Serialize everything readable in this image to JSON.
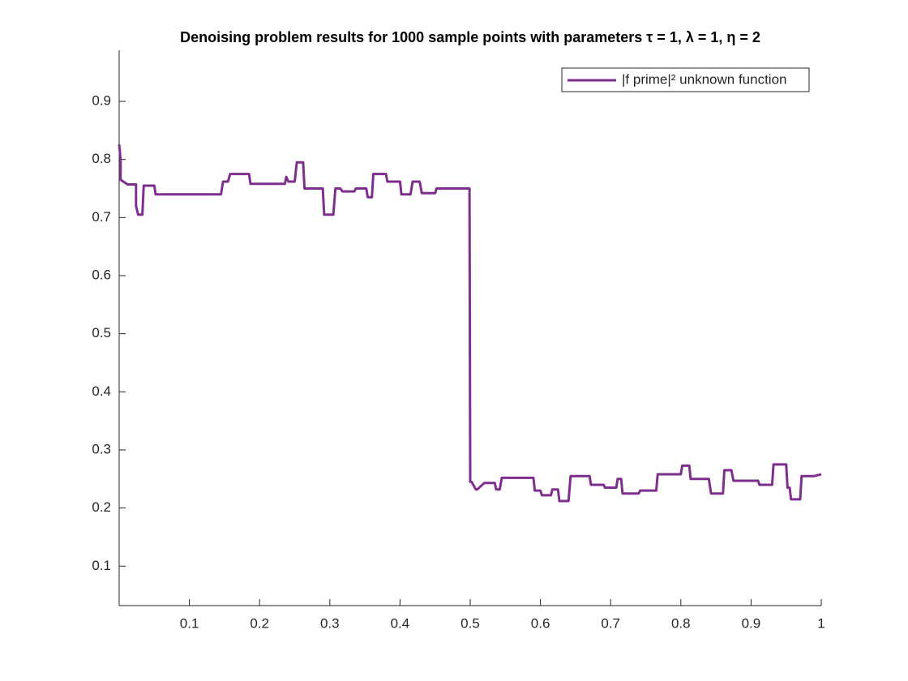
{
  "chart_data": {
    "type": "line",
    "title": "Denoising problem results for 1000 sample points with parameters τ = 1, λ = 1, η = 2",
    "x": [
      0,
      0.002,
      0.002,
      0.012,
      0.024,
      0.024,
      0.027,
      0.033,
      0.035,
      0.05,
      0.052,
      0.145,
      0.148,
      0.155,
      0.158,
      0.185,
      0.187,
      0.236,
      0.238,
      0.241,
      0.243,
      0.25,
      0.253,
      0.262,
      0.264,
      0.29,
      0.292,
      0.305,
      0.308,
      0.315,
      0.318,
      0.335,
      0.337,
      0.352,
      0.354,
      0.36,
      0.362,
      0.38,
      0.382,
      0.4,
      0.402,
      0.415,
      0.418,
      0.428,
      0.431,
      0.45,
      0.452,
      0.497,
      0.499,
      0.5,
      0.502,
      0.508,
      0.51,
      0.52,
      0.522,
      0.535,
      0.537,
      0.542,
      0.545,
      0.59,
      0.592,
      0.6,
      0.602,
      0.615,
      0.617,
      0.625,
      0.627,
      0.64,
      0.643,
      0.67,
      0.672,
      0.69,
      0.692,
      0.708,
      0.71,
      0.715,
      0.717,
      0.74,
      0.742,
      0.765,
      0.767,
      0.8,
      0.802,
      0.812,
      0.814,
      0.84,
      0.843,
      0.86,
      0.862,
      0.872,
      0.875,
      0.91,
      0.912,
      0.93,
      0.932,
      0.95,
      0.952,
      0.955,
      0.957,
      0.97,
      0.972,
      0.99,
      1
    ],
    "series": [
      {
        "name": "|f prime|² unknown function",
        "color": "#7e2f8e",
        "values": [
          0.826,
          0.8,
          0.765,
          0.757,
          0.757,
          0.72,
          0.705,
          0.705,
          0.755,
          0.755,
          0.74,
          0.74,
          0.762,
          0.762,
          0.775,
          0.775,
          0.758,
          0.758,
          0.77,
          0.762,
          0.762,
          0.762,
          0.795,
          0.795,
          0.75,
          0.75,
          0.705,
          0.705,
          0.75,
          0.75,
          0.745,
          0.745,
          0.75,
          0.75,
          0.735,
          0.735,
          0.775,
          0.775,
          0.762,
          0.762,
          0.74,
          0.74,
          0.762,
          0.762,
          0.742,
          0.742,
          0.75,
          0.75,
          0.75,
          0.245,
          0.245,
          0.232,
          0.232,
          0.243,
          0.243,
          0.243,
          0.232,
          0.232,
          0.252,
          0.252,
          0.23,
          0.23,
          0.222,
          0.222,
          0.232,
          0.232,
          0.212,
          0.212,
          0.255,
          0.255,
          0.24,
          0.24,
          0.235,
          0.235,
          0.25,
          0.25,
          0.225,
          0.225,
          0.23,
          0.23,
          0.258,
          0.258,
          0.273,
          0.273,
          0.25,
          0.25,
          0.225,
          0.225,
          0.265,
          0.265,
          0.247,
          0.247,
          0.24,
          0.24,
          0.275,
          0.275,
          0.235,
          0.235,
          0.215,
          0.215,
          0.255,
          0.255,
          0.258
        ]
      }
    ],
    "xlim": [
      0,
      1
    ],
    "xticks": [
      0.1,
      0.2,
      0.3,
      0.4,
      0.5,
      0.6,
      0.7,
      0.8,
      0.9,
      1
    ],
    "ylim": [
      0.032,
      0.988
    ],
    "yticks": [
      0.1,
      0.2,
      0.3,
      0.4,
      0.5,
      0.6,
      0.7,
      0.8,
      0.9
    ],
    "legend": "upper right"
  }
}
